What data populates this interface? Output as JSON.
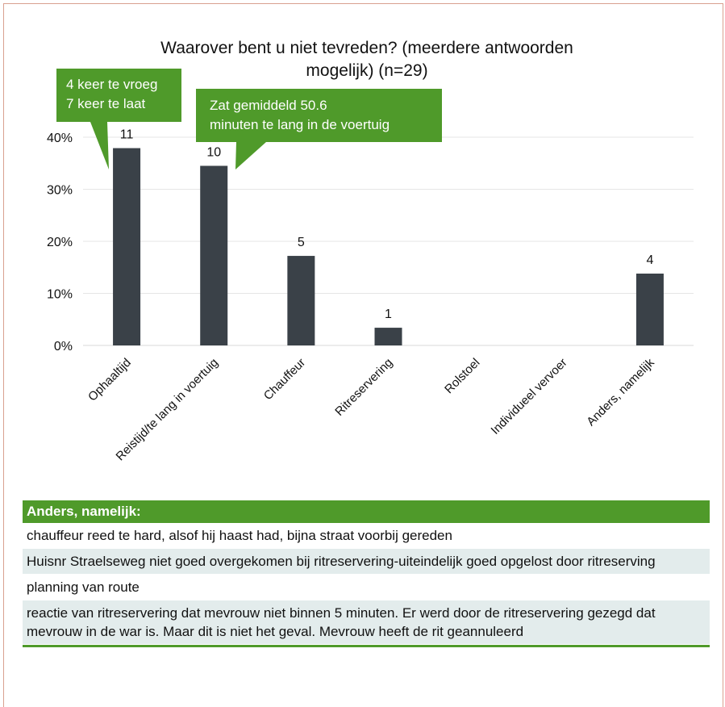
{
  "chart_data": {
    "type": "bar",
    "title_lines": [
      "Waarover bent u niet tevreden? (meerdere antwoorden",
      "mogelijk)  (n=29)"
    ],
    "categories": [
      "Ophaaltijd",
      "Reistijd/te lang in voertuig",
      "Chauffeur",
      "Ritreservering",
      "Rolstoel",
      "Individueel vervoer",
      "Anders, namelijk"
    ],
    "values": [
      37.9,
      34.5,
      17.2,
      3.4,
      0,
      0,
      13.8
    ],
    "counts": [
      "11",
      "10",
      "5",
      "1",
      "",
      "",
      "4"
    ],
    "y_ticks": [
      "0%",
      "10%",
      "20%",
      "30%",
      "40%"
    ],
    "ylim": [
      0,
      40
    ],
    "grid": true,
    "bar_color": "#3a4148",
    "annotations": [
      {
        "lines": [
          "4 keer te vroeg",
          "7 keer te laat"
        ],
        "color": "#4f9a2a"
      },
      {
        "lines": [
          "Zat gemiddeld 50.6",
          "minuten te lang in de voertuig"
        ],
        "color": "#4f9a2a"
      }
    ]
  },
  "table": {
    "header": "Anders, namelijk:",
    "rows": [
      "chauffeur reed te hard, alsof hij haast had, bijna straat voorbij gereden",
      "Huisnr Straelseweg niet goed overgekomen bij ritreservering-uiteindelijk goed opgelost door ritreserving",
      "planning van route",
      "reactie van ritreservering dat mevrouw niet binnen 5 minuten. Er werd door de ritreservering gezegd dat mevrouw in de war is. Maar dit is niet het geval. Mevrouw heeft de rit geannuleerd"
    ]
  }
}
